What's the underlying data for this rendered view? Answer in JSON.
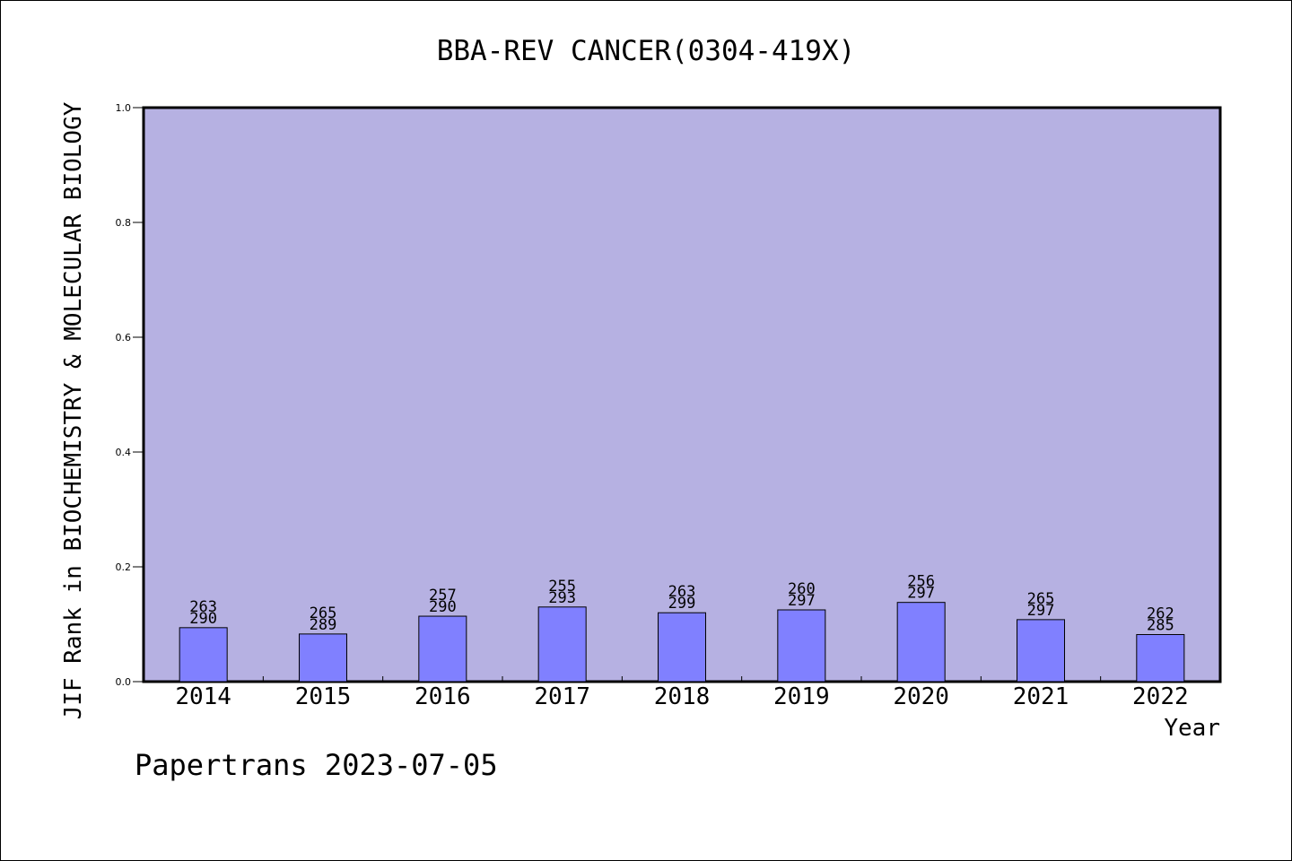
{
  "chart_data": {
    "type": "bar",
    "title": "BBA-REV CANCER(0304-419X)",
    "xlabel": "Year",
    "ylabel": "JIF Rank in BIOCHEMISTRY & MOLECULAR BIOLOGY",
    "ylim": [
      0,
      1.0
    ],
    "yticks": [
      "0.0",
      "0.2",
      "0.4",
      "0.6",
      "0.8",
      "1.0"
    ],
    "categories": [
      "2014",
      "2015",
      "2016",
      "2017",
      "2018",
      "2019",
      "2020",
      "2021",
      "2022"
    ],
    "values": [
      0.094,
      0.083,
      0.114,
      0.13,
      0.12,
      0.125,
      0.138,
      0.108,
      0.082
    ],
    "rank_labels": [
      {
        "rank": "263",
        "total": "290"
      },
      {
        "rank": "265",
        "total": "289"
      },
      {
        "rank": "257",
        "total": "290"
      },
      {
        "rank": "255",
        "total": "293"
      },
      {
        "rank": "263",
        "total": "299"
      },
      {
        "rank": "260",
        "total": "297"
      },
      {
        "rank": "256",
        "total": "297"
      },
      {
        "rank": "265",
        "total": "297"
      },
      {
        "rank": "262",
        "total": "285"
      }
    ],
    "grid": false
  },
  "footer": "Papertrans 2023-07-05",
  "colors": {
    "plot_background": "#b6b1e2",
    "bar_fill": "#8080ff",
    "axis": "#000000"
  }
}
